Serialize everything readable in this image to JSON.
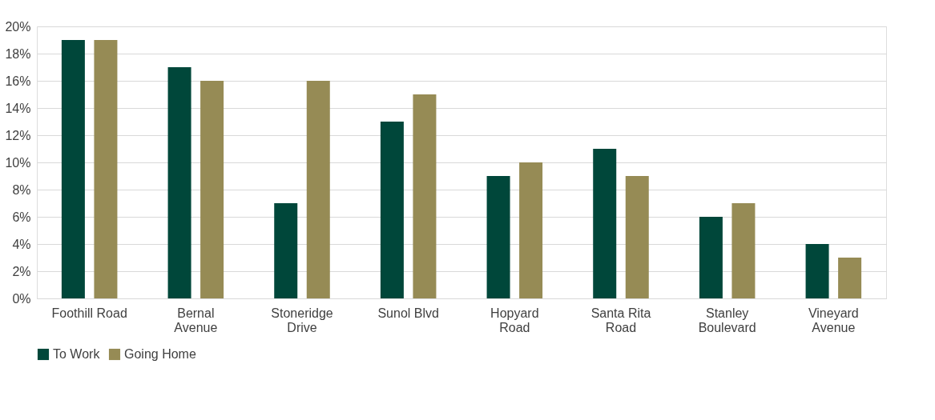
{
  "chart_data": {
    "type": "bar",
    "categories": [
      "Foothill Road",
      "Bernal\nAvenue",
      "Stoneridge\nDrive",
      "Sunol Blvd",
      "Hopyard\nRoad",
      "Santa Rita\nRoad",
      "Stanley\nBoulevard",
      "Vineyard\nAvenue"
    ],
    "series": [
      {
        "name": "To Work",
        "color": "#00473a",
        "values": [
          19,
          17,
          7,
          13,
          9,
          11,
          6,
          4
        ]
      },
      {
        "name": "Going Home",
        "color": "#968b55",
        "values": [
          19,
          16,
          16,
          15,
          10,
          9,
          7,
          3
        ]
      }
    ],
    "ylim": [
      0,
      20
    ],
    "yticks": [
      {
        "value": 0,
        "label": "0%"
      },
      {
        "value": 2,
        "label": "2%"
      },
      {
        "value": 4,
        "label": "4%"
      },
      {
        "value": 6,
        "label": "6%"
      },
      {
        "value": 8,
        "label": "8%"
      },
      {
        "value": 10,
        "label": "10%"
      },
      {
        "value": 12,
        "label": "12%"
      },
      {
        "value": 14,
        "label": "14%"
      },
      {
        "value": 16,
        "label": "16%"
      },
      {
        "value": 18,
        "label": "18%"
      },
      {
        "value": 20,
        "label": "20%"
      }
    ],
    "grid": "y",
    "legend": "bottom"
  }
}
